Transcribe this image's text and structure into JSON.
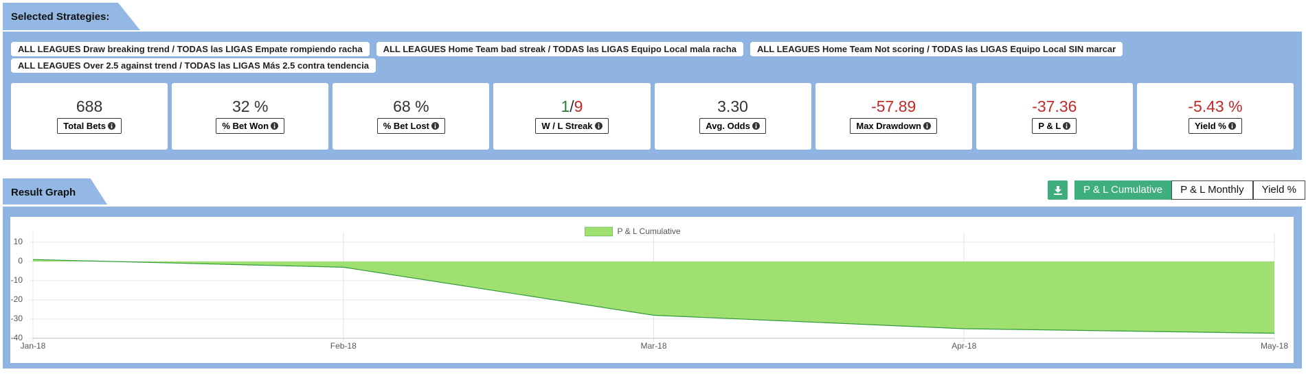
{
  "header": {
    "title": "Selected Strategies:"
  },
  "strategies": [
    "ALL LEAGUES Draw breaking trend / TODAS las LIGAS Empate rompiendo racha",
    "ALL LEAGUES Home Team bad streak / TODAS las LIGAS Equipo Local mala racha",
    "ALL LEAGUES Home Team Not scoring / TODAS las LIGAS Equipo Local SIN marcar",
    "ALL LEAGUES Over 2.5 against trend / TODAS las LIGAS Más 2.5 contra tendencia"
  ],
  "stats": [
    {
      "value": "688",
      "label": "Total Bets",
      "color": "#333333"
    },
    {
      "value": "32 %",
      "label": "% Bet Won",
      "color": "#333333"
    },
    {
      "value": "68 %",
      "label": "% Bet Lost",
      "color": "#333333"
    },
    {
      "wins": "1",
      "losses": "9",
      "label": "W / L Streak",
      "color": "#333333",
      "wins_color": "#2e7d32",
      "losses_color": "#c62828"
    },
    {
      "value": "3.30",
      "label": "Avg. Odds",
      "color": "#333333"
    },
    {
      "value": "-57.89",
      "label": "Max Drawdown",
      "color": "#c62828"
    },
    {
      "value": "-37.36",
      "label": "P & L",
      "color": "#c62828"
    },
    {
      "value": "-5.43 %",
      "label": "Yield %",
      "color": "#c62828"
    }
  ],
  "result_graph": {
    "title": "Result Graph",
    "buttons": [
      "P & L Cumulative",
      "P & L Monthly",
      "Yield %"
    ],
    "active": 0
  },
  "chart_data": {
    "type": "area",
    "categories": [
      "Jan-18",
      "Feb-18",
      "Mar-18",
      "Apr-18",
      "May-18"
    ],
    "series": [
      {
        "name": "P & L Cumulative",
        "color": "#a0e070",
        "line_color": "#2e9a3a",
        "values": [
          1,
          -3,
          -28,
          -35,
          -37.36
        ]
      }
    ],
    "ylim": [
      -40,
      10
    ],
    "yticks": [
      -40,
      -30,
      -20,
      -10,
      0,
      10
    ],
    "grid": true
  }
}
